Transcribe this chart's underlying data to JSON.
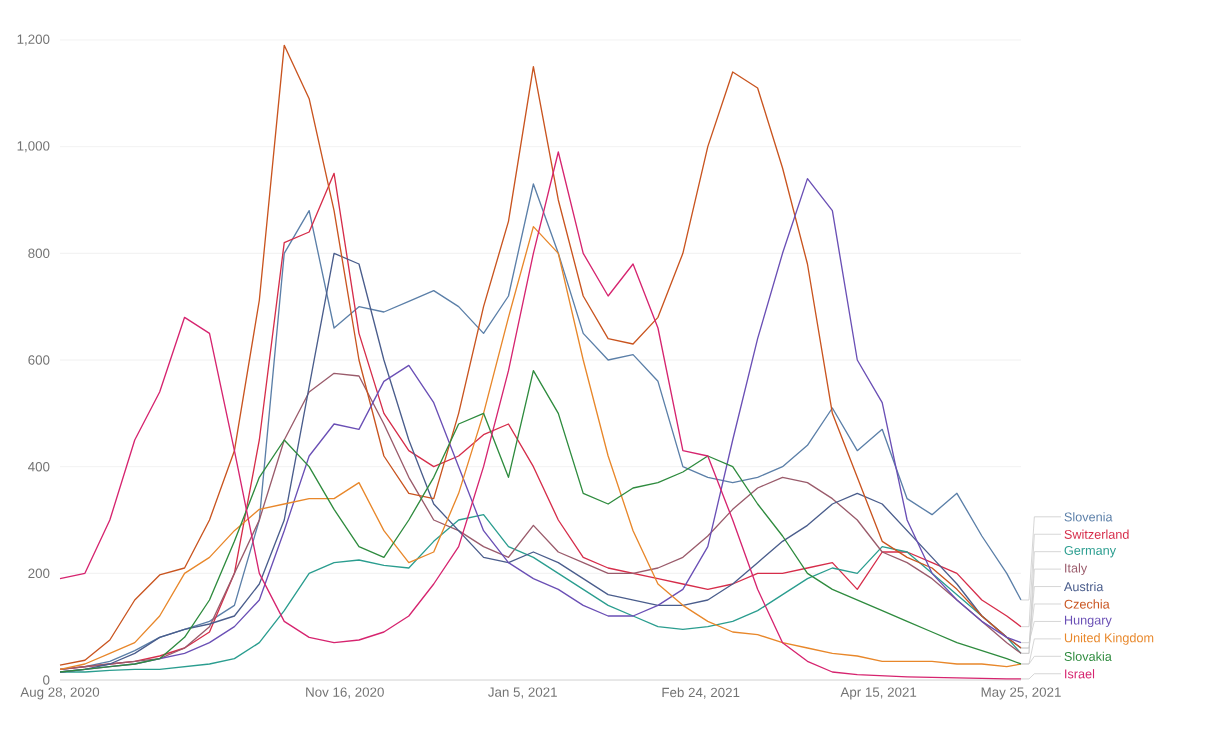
{
  "chart_data": {
    "type": "line",
    "x": [
      "2020-08-28",
      "2020-09-04",
      "2020-09-11",
      "2020-09-18",
      "2020-09-25",
      "2020-10-02",
      "2020-10-09",
      "2020-10-16",
      "2020-10-23",
      "2020-10-30",
      "2020-11-06",
      "2020-11-13",
      "2020-11-20",
      "2020-11-27",
      "2020-12-04",
      "2020-12-11",
      "2020-12-18",
      "2020-12-25",
      "2021-01-01",
      "2021-01-08",
      "2021-01-15",
      "2021-01-22",
      "2021-01-29",
      "2021-02-05",
      "2021-02-12",
      "2021-02-19",
      "2021-02-26",
      "2021-03-05",
      "2021-03-12",
      "2021-03-19",
      "2021-03-26",
      "2021-04-02",
      "2021-04-09",
      "2021-04-16",
      "2021-04-23",
      "2021-04-30",
      "2021-05-07",
      "2021-05-14",
      "2021-05-21",
      "2021-05-25"
    ],
    "series": [
      {
        "name": "Slovenia",
        "color": "#5b7fa8",
        "values": [
          20,
          25,
          35,
          55,
          80,
          95,
          110,
          140,
          300,
          800,
          880,
          660,
          700,
          690,
          710,
          730,
          700,
          650,
          720,
          930,
          800,
          650,
          600,
          610,
          560,
          400,
          380,
          370,
          380,
          400,
          440,
          510,
          430,
          470,
          340,
          310,
          350,
          270,
          200,
          150
        ]
      },
      {
        "name": "Switzerland",
        "color": "#d62d4a",
        "values": [
          20,
          25,
          30,
          35,
          45,
          60,
          90,
          200,
          450,
          820,
          840,
          950,
          650,
          500,
          430,
          400,
          420,
          460,
          480,
          400,
          300,
          230,
          210,
          200,
          190,
          180,
          170,
          180,
          200,
          200,
          210,
          220,
          170,
          240,
          240,
          220,
          200,
          150,
          120,
          100
        ]
      },
      {
        "name": "Germany",
        "color": "#2a9d8f",
        "values": [
          15,
          15,
          18,
          20,
          20,
          25,
          30,
          40,
          70,
          130,
          200,
          220,
          225,
          215,
          210,
          260,
          300,
          310,
          250,
          230,
          200,
          170,
          140,
          120,
          100,
          95,
          100,
          110,
          130,
          160,
          190,
          210,
          200,
          250,
          240,
          200,
          160,
          120,
          80,
          50
        ]
      },
      {
        "name": "Italy",
        "color": "#9a5b6b",
        "values": [
          20,
          25,
          30,
          35,
          40,
          60,
          100,
          200,
          300,
          450,
          540,
          575,
          570,
          480,
          380,
          300,
          280,
          250,
          230,
          290,
          240,
          220,
          200,
          200,
          210,
          230,
          270,
          320,
          360,
          380,
          370,
          340,
          300,
          240,
          220,
          190,
          150,
          110,
          70,
          50
        ]
      },
      {
        "name": "Austria",
        "color": "#4a5d8c",
        "values": [
          15,
          20,
          30,
          50,
          80,
          95,
          105,
          120,
          180,
          300,
          550,
          800,
          780,
          600,
          450,
          330,
          280,
          230,
          220,
          240,
          220,
          190,
          160,
          150,
          140,
          140,
          150,
          180,
          220,
          260,
          290,
          330,
          350,
          330,
          280,
          230,
          180,
          120,
          80,
          60
        ]
      },
      {
        "name": "Czechia",
        "color": "#c9541f",
        "values": [
          28,
          37,
          75,
          150,
          197,
          210,
          300,
          430,
          712,
          1190,
          1090,
          880,
          600,
          420,
          350,
          340,
          500,
          700,
          860,
          1150,
          900,
          720,
          640,
          630,
          680,
          800,
          1000,
          1140,
          1110,
          960,
          780,
          500,
          380,
          260,
          230,
          210,
          170,
          120,
          80,
          60
        ]
      },
      {
        "name": "Hungary",
        "color": "#6a4fb5",
        "values": [
          15,
          20,
          25,
          30,
          40,
          50,
          70,
          100,
          150,
          280,
          420,
          480,
          470,
          560,
          590,
          520,
          400,
          280,
          220,
          190,
          170,
          140,
          120,
          120,
          140,
          170,
          250,
          450,
          640,
          800,
          940,
          880,
          600,
          520,
          300,
          200,
          150,
          110,
          80,
          70
        ]
      },
      {
        "name": "United Kingdom",
        "color": "#e8872a",
        "values": [
          20,
          30,
          50,
          70,
          120,
          200,
          230,
          280,
          320,
          330,
          340,
          340,
          370,
          280,
          220,
          240,
          350,
          500,
          680,
          850,
          800,
          600,
          420,
          280,
          180,
          140,
          110,
          90,
          85,
          70,
          60,
          50,
          45,
          35,
          35,
          35,
          30,
          30,
          25,
          30
        ]
      },
      {
        "name": "Slovakia",
        "color": "#2e8b3e",
        "values": [
          15,
          20,
          25,
          30,
          40,
          80,
          150,
          260,
          380,
          450,
          400,
          320,
          250,
          230,
          300,
          380,
          480,
          500,
          380,
          580,
          500,
          350,
          330,
          360,
          370,
          390,
          420,
          400,
          330,
          270,
          200,
          170,
          150,
          130,
          110,
          90,
          70,
          55,
          40,
          30
        ]
      },
      {
        "name": "Israel",
        "color": "#d6246f",
        "values": [
          190,
          200,
          300,
          450,
          540,
          680,
          650,
          430,
          200,
          110,
          80,
          70,
          75,
          90,
          120,
          180,
          250,
          400,
          580,
          800,
          990,
          800,
          720,
          780,
          660,
          430,
          420,
          300,
          170,
          70,
          35,
          15,
          10,
          8,
          6,
          5,
          4,
          3,
          2,
          2
        ]
      }
    ],
    "xlim": [
      "2020-08-28",
      "2021-05-25"
    ],
    "xticks": [
      {
        "value": "2020-08-28",
        "label": "Aug 28, 2020"
      },
      {
        "value": "2020-11-16",
        "label": "Nov 16, 2020"
      },
      {
        "value": "2021-01-05",
        "label": "Jan 5, 2021"
      },
      {
        "value": "2021-02-24",
        "label": "Feb 24, 2021"
      },
      {
        "value": "2021-04-15",
        "label": "Apr 15, 2021"
      },
      {
        "value": "2021-05-25",
        "label": "May 25, 2021"
      }
    ],
    "ylim": [
      0,
      1200
    ],
    "yticks": [
      0,
      200,
      400,
      600,
      800,
      {
        "value": 1000,
        "label": "1,000"
      },
      {
        "value": 1200,
        "label": "1,200"
      }
    ],
    "grid": "y",
    "marker": "none",
    "line_style": "solid"
  }
}
